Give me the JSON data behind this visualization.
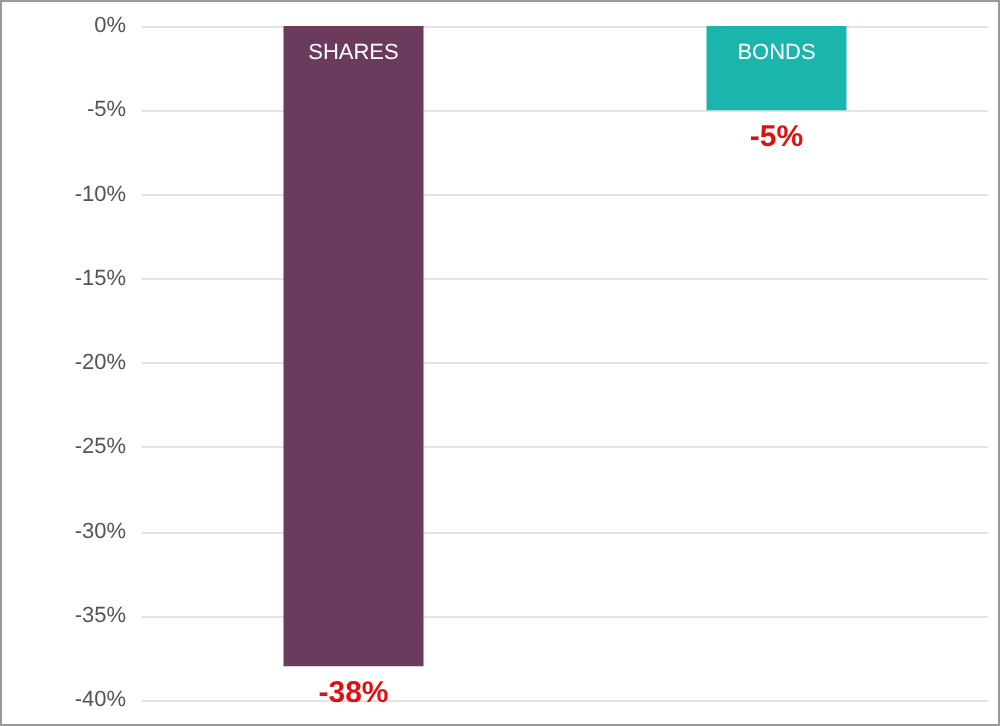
{
  "chart_data": {
    "type": "bar",
    "categories": [
      "SHARES",
      "BONDS"
    ],
    "values": [
      -38,
      -5
    ],
    "colors": [
      "#6b3a5c",
      "#1ab5ad"
    ],
    "value_labels": [
      "-38%",
      "-5%"
    ],
    "ylim": [
      -40,
      0
    ],
    "yticks": [
      {
        "value": 0,
        "label": "0%"
      },
      {
        "value": -5,
        "label": "-5%"
      },
      {
        "value": -10,
        "label": "-10%"
      },
      {
        "value": -15,
        "label": "-15%"
      },
      {
        "value": -20,
        "label": "-20%"
      },
      {
        "value": -25,
        "label": "-25%"
      },
      {
        "value": -30,
        "label": "-30%"
      },
      {
        "value": -35,
        "label": "-35%"
      },
      {
        "value": -40,
        "label": "-40%"
      }
    ],
    "grid": "y"
  }
}
